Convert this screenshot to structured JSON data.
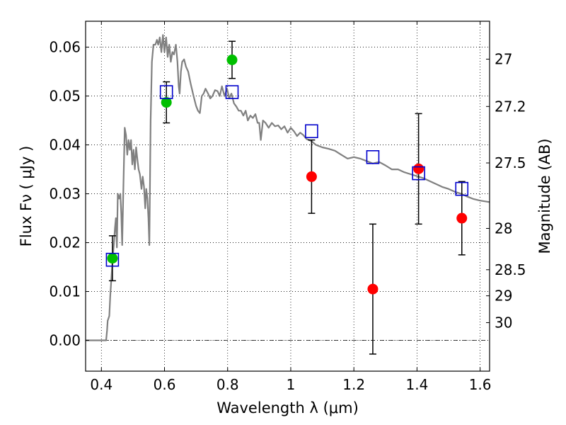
{
  "chart_data": {
    "type": "scatter",
    "x_axis": {
      "label": "Wavelength  λ (μm)",
      "range": [
        0.35,
        1.63
      ],
      "ticks": [
        0.4,
        0.6,
        0.8,
        1.0,
        1.2,
        1.4,
        1.6
      ],
      "tick_labels": [
        "0.4",
        "0.6",
        "0.8",
        "1",
        "1.2",
        "1.4",
        "1.6"
      ]
    },
    "y_axis": {
      "label": "Flux  Fν  ( μJy )",
      "range": [
        -0.0063,
        0.0653
      ],
      "ticks": [
        0.0,
        0.01,
        0.02,
        0.03,
        0.04,
        0.05,
        0.06
      ],
      "tick_labels": [
        "0.00",
        "0.01",
        "0.02",
        "0.03",
        "0.04",
        "0.05",
        "0.06"
      ]
    },
    "y2_axis": {
      "label": "Magnitude (AB)",
      "ticks": [
        27,
        27.2,
        27.5,
        28,
        28.5,
        29,
        30
      ],
      "tick_labels": [
        "27",
        "27.2",
        "27.5",
        "28",
        "28.5",
        "29",
        "30"
      ]
    },
    "grid": true,
    "zero_line": true,
    "sed_model": {
      "color": "#808080",
      "points": [
        [
          0.35,
          0.0
        ],
        [
          0.415,
          0.0
        ],
        [
          0.418,
          0.002
        ],
        [
          0.42,
          0.004
        ],
        [
          0.425,
          0.005
        ],
        [
          0.428,
          0.009
        ],
        [
          0.432,
          0.013
        ],
        [
          0.436,
          0.017
        ],
        [
          0.44,
          0.02
        ],
        [
          0.443,
          0.023
        ],
        [
          0.446,
          0.025
        ],
        [
          0.449,
          0.019
        ],
        [
          0.452,
          0.03
        ],
        [
          0.456,
          0.029
        ],
        [
          0.46,
          0.03
        ],
        [
          0.463,
          0.026
        ],
        [
          0.466,
          0.0195
        ],
        [
          0.47,
          0.032
        ],
        [
          0.474,
          0.0435
        ],
        [
          0.478,
          0.042
        ],
        [
          0.482,
          0.038
        ],
        [
          0.486,
          0.041
        ],
        [
          0.49,
          0.039
        ],
        [
          0.494,
          0.041
        ],
        [
          0.498,
          0.036
        ],
        [
          0.502,
          0.039
        ],
        [
          0.506,
          0.035
        ],
        [
          0.51,
          0.0395
        ],
        [
          0.514,
          0.037
        ],
        [
          0.518,
          0.035
        ],
        [
          0.522,
          0.034
        ],
        [
          0.527,
          0.031
        ],
        [
          0.531,
          0.0335
        ],
        [
          0.535,
          0.0315
        ],
        [
          0.539,
          0.027
        ],
        [
          0.542,
          0.031
        ],
        [
          0.546,
          0.029
        ],
        [
          0.549,
          0.025
        ],
        [
          0.552,
          0.0195
        ],
        [
          0.556,
          0.045
        ],
        [
          0.56,
          0.057
        ],
        [
          0.565,
          0.0605
        ],
        [
          0.571,
          0.0605
        ],
        [
          0.576,
          0.0615
        ],
        [
          0.58,
          0.0605
        ],
        [
          0.585,
          0.062
        ],
        [
          0.59,
          0.059
        ],
        [
          0.595,
          0.0625
        ],
        [
          0.6,
          0.059
        ],
        [
          0.605,
          0.062
        ],
        [
          0.61,
          0.058
        ],
        [
          0.615,
          0.0605
        ],
        [
          0.62,
          0.057
        ],
        [
          0.625,
          0.059
        ],
        [
          0.63,
          0.0585
        ],
        [
          0.636,
          0.0605
        ],
        [
          0.641,
          0.057
        ],
        [
          0.645,
          0.052
        ],
        [
          0.648,
          0.0505
        ],
        [
          0.652,
          0.055
        ],
        [
          0.656,
          0.057
        ],
        [
          0.662,
          0.0575
        ],
        [
          0.668,
          0.056
        ],
        [
          0.675,
          0.055
        ],
        [
          0.683,
          0.0525
        ],
        [
          0.692,
          0.05
        ],
        [
          0.7,
          0.048
        ],
        [
          0.706,
          0.047
        ],
        [
          0.712,
          0.0465
        ],
        [
          0.718,
          0.05
        ],
        [
          0.724,
          0.0505
        ],
        [
          0.73,
          0.0515
        ],
        [
          0.738,
          0.0505
        ],
        [
          0.745,
          0.0495
        ],
        [
          0.752,
          0.05
        ],
        [
          0.76,
          0.0512
        ],
        [
          0.768,
          0.051
        ],
        [
          0.775,
          0.05
        ],
        [
          0.782,
          0.052
        ],
        [
          0.79,
          0.05
        ],
        [
          0.798,
          0.0515
        ],
        [
          0.805,
          0.0495
        ],
        [
          0.812,
          0.0505
        ],
        [
          0.82,
          0.0485
        ],
        [
          0.828,
          0.0478
        ],
        [
          0.835,
          0.047
        ],
        [
          0.842,
          0.047
        ],
        [
          0.85,
          0.046
        ],
        [
          0.857,
          0.047
        ],
        [
          0.864,
          0.045
        ],
        [
          0.872,
          0.046
        ],
        [
          0.88,
          0.0455
        ],
        [
          0.888,
          0.0463
        ],
        [
          0.895,
          0.0445
        ],
        [
          0.9,
          0.0445
        ],
        [
          0.905,
          0.041
        ],
        [
          0.912,
          0.045
        ],
        [
          0.92,
          0.0445
        ],
        [
          0.93,
          0.0435
        ],
        [
          0.94,
          0.0445
        ],
        [
          0.95,
          0.0438
        ],
        [
          0.96,
          0.044
        ],
        [
          0.97,
          0.0432
        ],
        [
          0.98,
          0.0438
        ],
        [
          0.99,
          0.0425
        ],
        [
          1.0,
          0.0435
        ],
        [
          1.01,
          0.0428
        ],
        [
          1.02,
          0.0418
        ],
        [
          1.03,
          0.0425
        ],
        [
          1.04,
          0.042
        ],
        [
          1.05,
          0.0412
        ],
        [
          1.065,
          0.0408
        ],
        [
          1.08,
          0.04
        ],
        [
          1.1,
          0.0395
        ],
        [
          1.12,
          0.0392
        ],
        [
          1.14,
          0.0388
        ],
        [
          1.16,
          0.038
        ],
        [
          1.18,
          0.0372
        ],
        [
          1.2,
          0.0375
        ],
        [
          1.22,
          0.0372
        ],
        [
          1.24,
          0.0367
        ],
        [
          1.26,
          0.0362
        ],
        [
          1.28,
          0.0365
        ],
        [
          1.3,
          0.0358
        ],
        [
          1.32,
          0.035
        ],
        [
          1.34,
          0.035
        ],
        [
          1.36,
          0.0344
        ],
        [
          1.38,
          0.034
        ],
        [
          1.4,
          0.0336
        ],
        [
          1.42,
          0.0332
        ],
        [
          1.44,
          0.0326
        ],
        [
          1.46,
          0.032
        ],
        [
          1.48,
          0.0314
        ],
        [
          1.5,
          0.031
        ],
        [
          1.52,
          0.0304
        ],
        [
          1.54,
          0.03
        ],
        [
          1.56,
          0.0294
        ],
        [
          1.58,
          0.0289
        ],
        [
          1.6,
          0.0286
        ],
        [
          1.63,
          0.0283
        ]
      ]
    },
    "series": [
      {
        "marker": "circle",
        "color": "#00bf00",
        "points": [
          {
            "x": 0.435,
            "y": 0.0168,
            "err": 0.0046
          },
          {
            "x": 0.606,
            "y": 0.0487,
            "err": 0.0042
          },
          {
            "x": 0.814,
            "y": 0.0574,
            "err": 0.0038
          }
        ]
      },
      {
        "marker": "circle",
        "color": "#ff0000",
        "points": [
          {
            "x": 1.066,
            "y": 0.0335,
            "err": 0.0075
          },
          {
            "x": 1.26,
            "y": 0.0105,
            "err": 0.0133
          },
          {
            "x": 1.405,
            "y": 0.0351,
            "err": 0.0113
          },
          {
            "x": 1.542,
            "y": 0.025,
            "err": 0.0075
          }
        ]
      },
      {
        "marker": "square-open",
        "color": "#0000cc",
        "points": [
          {
            "x": 0.435,
            "y": 0.0165
          },
          {
            "x": 0.606,
            "y": 0.0508
          },
          {
            "x": 0.814,
            "y": 0.0508
          },
          {
            "x": 1.066,
            "y": 0.0428
          },
          {
            "x": 1.26,
            "y": 0.0375
          },
          {
            "x": 1.405,
            "y": 0.0342
          },
          {
            "x": 1.542,
            "y": 0.031
          }
        ]
      }
    ]
  }
}
